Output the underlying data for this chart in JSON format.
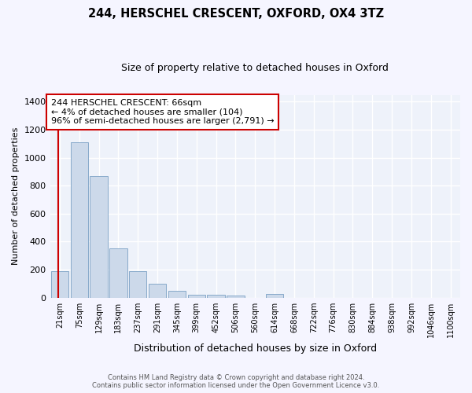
{
  "title": "244, HERSCHEL CRESCENT, OXFORD, OX4 3TZ",
  "subtitle": "Size of property relative to detached houses in Oxford",
  "xlabel": "Distribution of detached houses by size in Oxford",
  "ylabel": "Number of detached properties",
  "bar_color": "#ccd9ea",
  "bar_edge_color": "#7aa0c4",
  "categories": [
    "21sqm",
    "75sqm",
    "129sqm",
    "183sqm",
    "237sqm",
    "291sqm",
    "345sqm",
    "399sqm",
    "452sqm",
    "506sqm",
    "560sqm",
    "614sqm",
    "668sqm",
    "722sqm",
    "776sqm",
    "830sqm",
    "884sqm",
    "938sqm",
    "992sqm",
    "1046sqm",
    "1100sqm"
  ],
  "values": [
    190,
    1110,
    870,
    350,
    190,
    100,
    48,
    22,
    20,
    15,
    0,
    25,
    0,
    0,
    0,
    0,
    0,
    0,
    0,
    0,
    0
  ],
  "ylim": [
    0,
    1450
  ],
  "yticks": [
    0,
    200,
    400,
    600,
    800,
    1000,
    1200,
    1400
  ],
  "annotation_text_line1": "244 HERSCHEL CRESCENT: 66sqm",
  "annotation_text_line2": "← 4% of detached houses are smaller (104)",
  "annotation_text_line3": "96% of semi-detached houses are larger (2,791) →",
  "footer_line1": "Contains HM Land Registry data © Crown copyright and database right 2024.",
  "footer_line2": "Contains public sector information licensed under the Open Government Licence v3.0.",
  "bg_color": "#eef2fa",
  "grid_color": "#ffffff",
  "annotation_box_edge": "#cc0000",
  "property_line_color": "#cc0000",
  "fig_bg": "#f5f5ff"
}
